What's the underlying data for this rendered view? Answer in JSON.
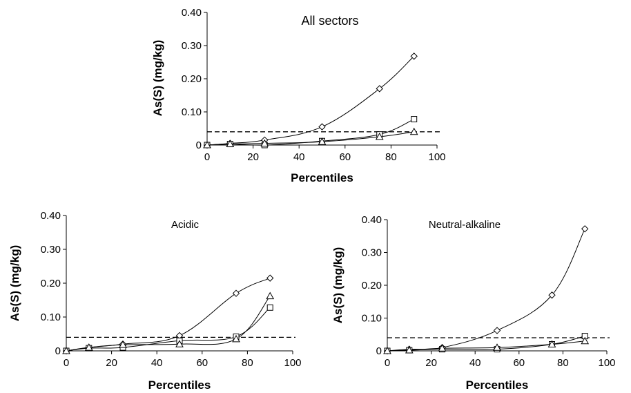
{
  "chart_data": [
    {
      "type": "line",
      "title": "All sectors",
      "xlabel": "Percentiles",
      "ylabel": "As(S) (mg/kg)",
      "xlim": [
        0,
        100
      ],
      "ylim": [
        0,
        0.4
      ],
      "xticks": [
        "0",
        "20",
        "40",
        "60",
        "80",
        "100"
      ],
      "yticks": [
        "0",
        "0.10",
        "0.20",
        "0.30",
        "0.40"
      ],
      "reference_line": 0.04,
      "series": [
        {
          "marker": "diamond",
          "x": [
            0,
            10,
            25,
            50,
            75,
            90
          ],
          "y": [
            0.0,
            0.005,
            0.015,
            0.055,
            0.17,
            0.268
          ]
        },
        {
          "marker": "square",
          "x": [
            0,
            10,
            25,
            50,
            75,
            90
          ],
          "y": [
            0.0,
            0.003,
            0.0,
            0.012,
            0.032,
            0.078
          ]
        },
        {
          "marker": "triangle",
          "x": [
            0,
            10,
            25,
            50,
            75,
            90
          ],
          "y": [
            0.0,
            0.003,
            0.005,
            0.01,
            0.025,
            0.04
          ]
        }
      ]
    },
    {
      "type": "line",
      "title": "Acidic",
      "xlabel": "Percentiles",
      "ylabel": "As(S) (mg/kg)",
      "xlim": [
        0,
        100
      ],
      "ylim": [
        0,
        0.4
      ],
      "xticks": [
        "0",
        "20",
        "40",
        "60",
        "80",
        "100"
      ],
      "yticks": [
        "0",
        "0.10",
        "0.20",
        "0.30",
        "0.40"
      ],
      "reference_line": 0.04,
      "series": [
        {
          "marker": "diamond",
          "x": [
            0,
            10,
            25,
            50,
            75,
            90
          ],
          "y": [
            0.0,
            0.01,
            0.02,
            0.045,
            0.17,
            0.215
          ]
        },
        {
          "marker": "square",
          "x": [
            0,
            10,
            25,
            50,
            75,
            90
          ],
          "y": [
            0.0,
            0.008,
            0.01,
            0.03,
            0.042,
            0.128
          ]
        },
        {
          "marker": "triangle",
          "x": [
            0,
            10,
            25,
            50,
            75,
            90
          ],
          "y": [
            0.0,
            0.01,
            0.018,
            0.02,
            0.035,
            0.162
          ]
        }
      ]
    },
    {
      "type": "line",
      "title": "Neutral-alkaline",
      "xlabel": "Percentiles",
      "ylabel": "As(S) (mg/kg)",
      "xlim": [
        0,
        100
      ],
      "ylim": [
        0,
        0.4
      ],
      "xticks": [
        "0",
        "20",
        "40",
        "60",
        "80",
        "100"
      ],
      "yticks": [
        "0",
        "0.10",
        "0.20",
        "0.30",
        "0.40"
      ],
      "reference_line": 0.04,
      "series": [
        {
          "marker": "diamond",
          "x": [
            0,
            10,
            25,
            50,
            75,
            90
          ],
          "y": [
            0.0,
            0.005,
            0.01,
            0.062,
            0.17,
            0.372
          ]
        },
        {
          "marker": "square",
          "x": [
            0,
            10,
            25,
            50,
            75,
            90
          ],
          "y": [
            0.0,
            0.002,
            0.005,
            0.005,
            0.02,
            0.045
          ]
        },
        {
          "marker": "triangle",
          "x": [
            0,
            10,
            25,
            50,
            75,
            90
          ],
          "y": [
            0.0,
            0.002,
            0.008,
            0.01,
            0.02,
            0.03
          ]
        }
      ]
    }
  ]
}
